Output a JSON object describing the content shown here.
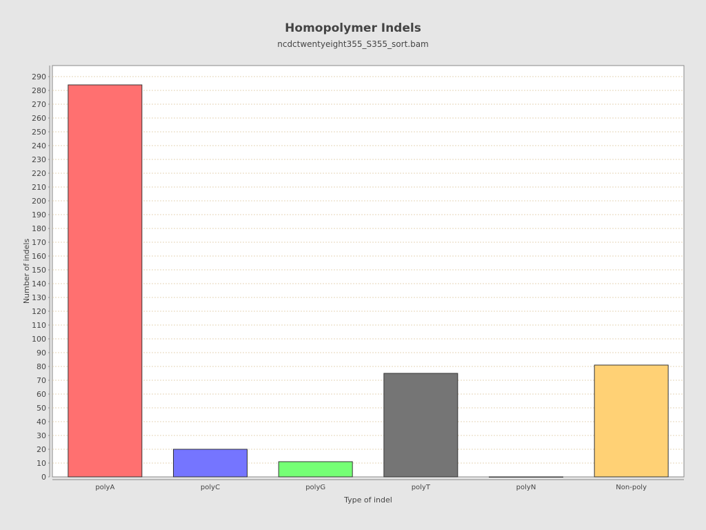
{
  "chart_data": {
    "type": "bar",
    "title": "Homopolymer Indels",
    "subtitle": "ncdctwentyeight355_S355_sort.bam",
    "xlabel": "Type of indel",
    "ylabel": "Number of indels",
    "categories": [
      "polyA",
      "polyC",
      "polyG",
      "polyT",
      "polyN",
      "Non-poly"
    ],
    "values": [
      284,
      20,
      11,
      75,
      0,
      81
    ],
    "colors": [
      "#ff7070",
      "#7575ff",
      "#75ff75",
      "#757575",
      "#ff75ff",
      "#ffd175"
    ],
    "ylim": [
      0,
      298
    ],
    "ytick_step": 10,
    "grid": true,
    "legend": "none"
  }
}
